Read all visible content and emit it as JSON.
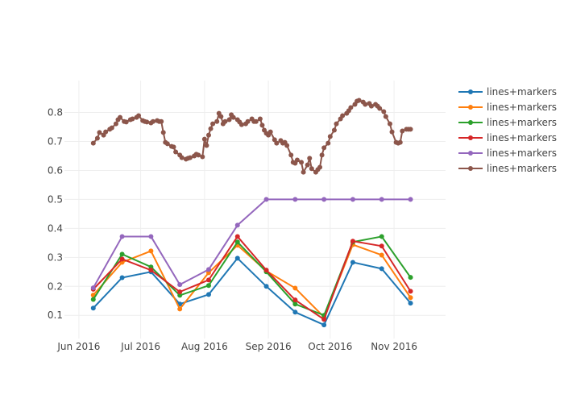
{
  "chart_data": {
    "type": "line",
    "title": "",
    "xlabel": "",
    "ylabel": "",
    "x_axis": {
      "type": "date",
      "range": [
        "2016-05-25",
        "2016-11-26"
      ],
      "ticks": [
        {
          "date": "2016-06-01",
          "label": "Jun 2016"
        },
        {
          "date": "2016-07-01",
          "label": "Jul 2016"
        },
        {
          "date": "2016-08-01",
          "label": "Aug 2016"
        },
        {
          "date": "2016-09-01",
          "label": "Sep 2016"
        },
        {
          "date": "2016-10-01",
          "label": "Oct 2016"
        },
        {
          "date": "2016-11-01",
          "label": "Nov 2016"
        }
      ]
    },
    "y_axis": {
      "range": [
        0.02,
        0.91
      ],
      "ticks": [
        0.1,
        0.2,
        0.3,
        0.4,
        0.5,
        0.6,
        0.7,
        0.8
      ],
      "tick_labels": [
        "0.1",
        "0.2",
        "0.3",
        "0.4",
        "0.5",
        "0.6",
        "0.7",
        "0.8"
      ]
    },
    "grid": true,
    "legend_position": "right",
    "series": [
      {
        "name": "lines+markers",
        "color": "#1f77b4",
        "x": [
          "2016-06-08",
          "2016-06-22",
          "2016-07-06",
          "2016-07-20",
          "2016-08-03",
          "2016-08-17",
          "2016-08-31",
          "2016-09-14",
          "2016-09-28",
          "2016-10-12",
          "2016-10-26",
          "2016-11-09"
        ],
        "y": [
          0.125,
          0.23,
          0.25,
          0.139,
          0.172,
          0.297,
          0.2,
          0.111,
          0.067,
          0.283,
          0.261,
          0.142
        ]
      },
      {
        "name": "lines+markers",
        "color": "#ff7f0e",
        "x": [
          "2016-06-08",
          "2016-06-22",
          "2016-07-06",
          "2016-07-20",
          "2016-08-03",
          "2016-08-17",
          "2016-08-31",
          "2016-09-14",
          "2016-09-28",
          "2016-10-12",
          "2016-10-26",
          "2016-11-09"
        ],
        "y": [
          0.17,
          0.283,
          0.322,
          0.122,
          0.247,
          0.342,
          0.253,
          0.194,
          0.094,
          0.344,
          0.308,
          0.161
        ]
      },
      {
        "name": "lines+markers",
        "color": "#2ca02c",
        "x": [
          "2016-06-08",
          "2016-06-22",
          "2016-07-06",
          "2016-07-20",
          "2016-08-03",
          "2016-08-17",
          "2016-08-31",
          "2016-09-14",
          "2016-09-28",
          "2016-10-12",
          "2016-10-26",
          "2016-11-09"
        ],
        "y": [
          0.155,
          0.311,
          0.267,
          0.169,
          0.203,
          0.353,
          0.25,
          0.139,
          0.1,
          0.353,
          0.372,
          0.231
        ]
      },
      {
        "name": "lines+markers",
        "color": "#d62728",
        "x": [
          "2016-06-08",
          "2016-06-22",
          "2016-07-06",
          "2016-07-20",
          "2016-08-03",
          "2016-08-17",
          "2016-08-31",
          "2016-09-14",
          "2016-09-28",
          "2016-10-12",
          "2016-10-26",
          "2016-11-09"
        ],
        "y": [
          0.19,
          0.294,
          0.256,
          0.181,
          0.222,
          0.372,
          0.256,
          0.153,
          0.086,
          0.356,
          0.339,
          0.183
        ]
      },
      {
        "name": "lines+markers",
        "color": "#9467bd",
        "x": [
          "2016-06-08",
          "2016-06-22",
          "2016-07-06",
          "2016-07-20",
          "2016-08-03",
          "2016-08-17",
          "2016-08-31",
          "2016-09-14",
          "2016-09-28",
          "2016-10-12",
          "2016-10-26",
          "2016-11-09"
        ],
        "y": [
          0.195,
          0.372,
          0.372,
          0.206,
          0.258,
          0.411,
          0.5,
          0.5,
          0.5,
          0.5,
          0.5,
          0.5
        ]
      },
      {
        "name": "lines+markers",
        "color": "#8c564b",
        "x": [
          "2016-06-08",
          "2016-06-10",
          "2016-06-11",
          "2016-06-13",
          "2016-06-14",
          "2016-06-16",
          "2016-06-17",
          "2016-06-19",
          "2016-06-20",
          "2016-06-21",
          "2016-06-23",
          "2016-06-24",
          "2016-06-26",
          "2016-06-27",
          "2016-06-29",
          "2016-06-30",
          "2016-07-02",
          "2016-07-03",
          "2016-07-04",
          "2016-07-06",
          "2016-07-07",
          "2016-07-09",
          "2016-07-10",
          "2016-07-11",
          "2016-07-12",
          "2016-07-13",
          "2016-07-14",
          "2016-07-16",
          "2016-07-17",
          "2016-07-18",
          "2016-07-20",
          "2016-07-21",
          "2016-07-23",
          "2016-07-24",
          "2016-07-25",
          "2016-07-27",
          "2016-07-28",
          "2016-07-29",
          "2016-07-31",
          "2016-08-01",
          "2016-08-02",
          "2016-08-03",
          "2016-08-04",
          "2016-08-05",
          "2016-08-07",
          "2016-08-08",
          "2016-08-09",
          "2016-08-10",
          "2016-08-11",
          "2016-08-13",
          "2016-08-14",
          "2016-08-15",
          "2016-08-17",
          "2016-08-18",
          "2016-08-19",
          "2016-08-21",
          "2016-08-22",
          "2016-08-24",
          "2016-08-25",
          "2016-08-26",
          "2016-08-28",
          "2016-08-29",
          "2016-08-30",
          "2016-08-31",
          "2016-09-01",
          "2016-09-02",
          "2016-09-04",
          "2016-09-05",
          "2016-09-07",
          "2016-09-08",
          "2016-09-09",
          "2016-09-10",
          "2016-09-12",
          "2016-09-13",
          "2016-09-14",
          "2016-09-15",
          "2016-09-17",
          "2016-09-18",
          "2016-09-20",
          "2016-09-21",
          "2016-09-22",
          "2016-09-24",
          "2016-09-25",
          "2016-09-26",
          "2016-09-27",
          "2016-09-28",
          "2016-09-30",
          "2016-10-01",
          "2016-10-03",
          "2016-10-04",
          "2016-10-06",
          "2016-10-07",
          "2016-10-09",
          "2016-10-10",
          "2016-10-11",
          "2016-10-13",
          "2016-10-14",
          "2016-10-15",
          "2016-10-17",
          "2016-10-18",
          "2016-10-20",
          "2016-10-21",
          "2016-10-23",
          "2016-10-24",
          "2016-10-25",
          "2016-10-27",
          "2016-10-28",
          "2016-10-30",
          "2016-10-31",
          "2016-11-02",
          "2016-11-03",
          "2016-11-04",
          "2016-11-05",
          "2016-11-07",
          "2016-11-08",
          "2016-11-09"
        ],
        "y": [
          0.694,
          0.711,
          0.731,
          0.722,
          0.733,
          0.742,
          0.747,
          0.761,
          0.775,
          0.783,
          0.769,
          0.767,
          0.775,
          0.778,
          0.783,
          0.789,
          0.772,
          0.769,
          0.767,
          0.764,
          0.769,
          0.772,
          0.769,
          0.769,
          0.731,
          0.697,
          0.692,
          0.683,
          0.681,
          0.664,
          0.653,
          0.644,
          0.639,
          0.642,
          0.644,
          0.65,
          0.656,
          0.653,
          0.647,
          0.708,
          0.686,
          0.722,
          0.744,
          0.761,
          0.769,
          0.797,
          0.786,
          0.761,
          0.769,
          0.775,
          0.792,
          0.783,
          0.775,
          0.767,
          0.758,
          0.761,
          0.769,
          0.778,
          0.769,
          0.769,
          0.778,
          0.756,
          0.739,
          0.728,
          0.722,
          0.733,
          0.706,
          0.694,
          0.703,
          0.694,
          0.697,
          0.686,
          0.653,
          0.628,
          0.625,
          0.636,
          0.628,
          0.594,
          0.619,
          0.642,
          0.606,
          0.594,
          0.603,
          0.611,
          0.653,
          0.678,
          0.694,
          0.717,
          0.739,
          0.761,
          0.778,
          0.789,
          0.797,
          0.806,
          0.817,
          0.828,
          0.839,
          0.842,
          0.836,
          0.828,
          0.831,
          0.822,
          0.828,
          0.822,
          0.814,
          0.803,
          0.786,
          0.761,
          0.733,
          0.697,
          0.694,
          0.697,
          0.736,
          0.742,
          0.742,
          0.742
        ]
      }
    ]
  }
}
